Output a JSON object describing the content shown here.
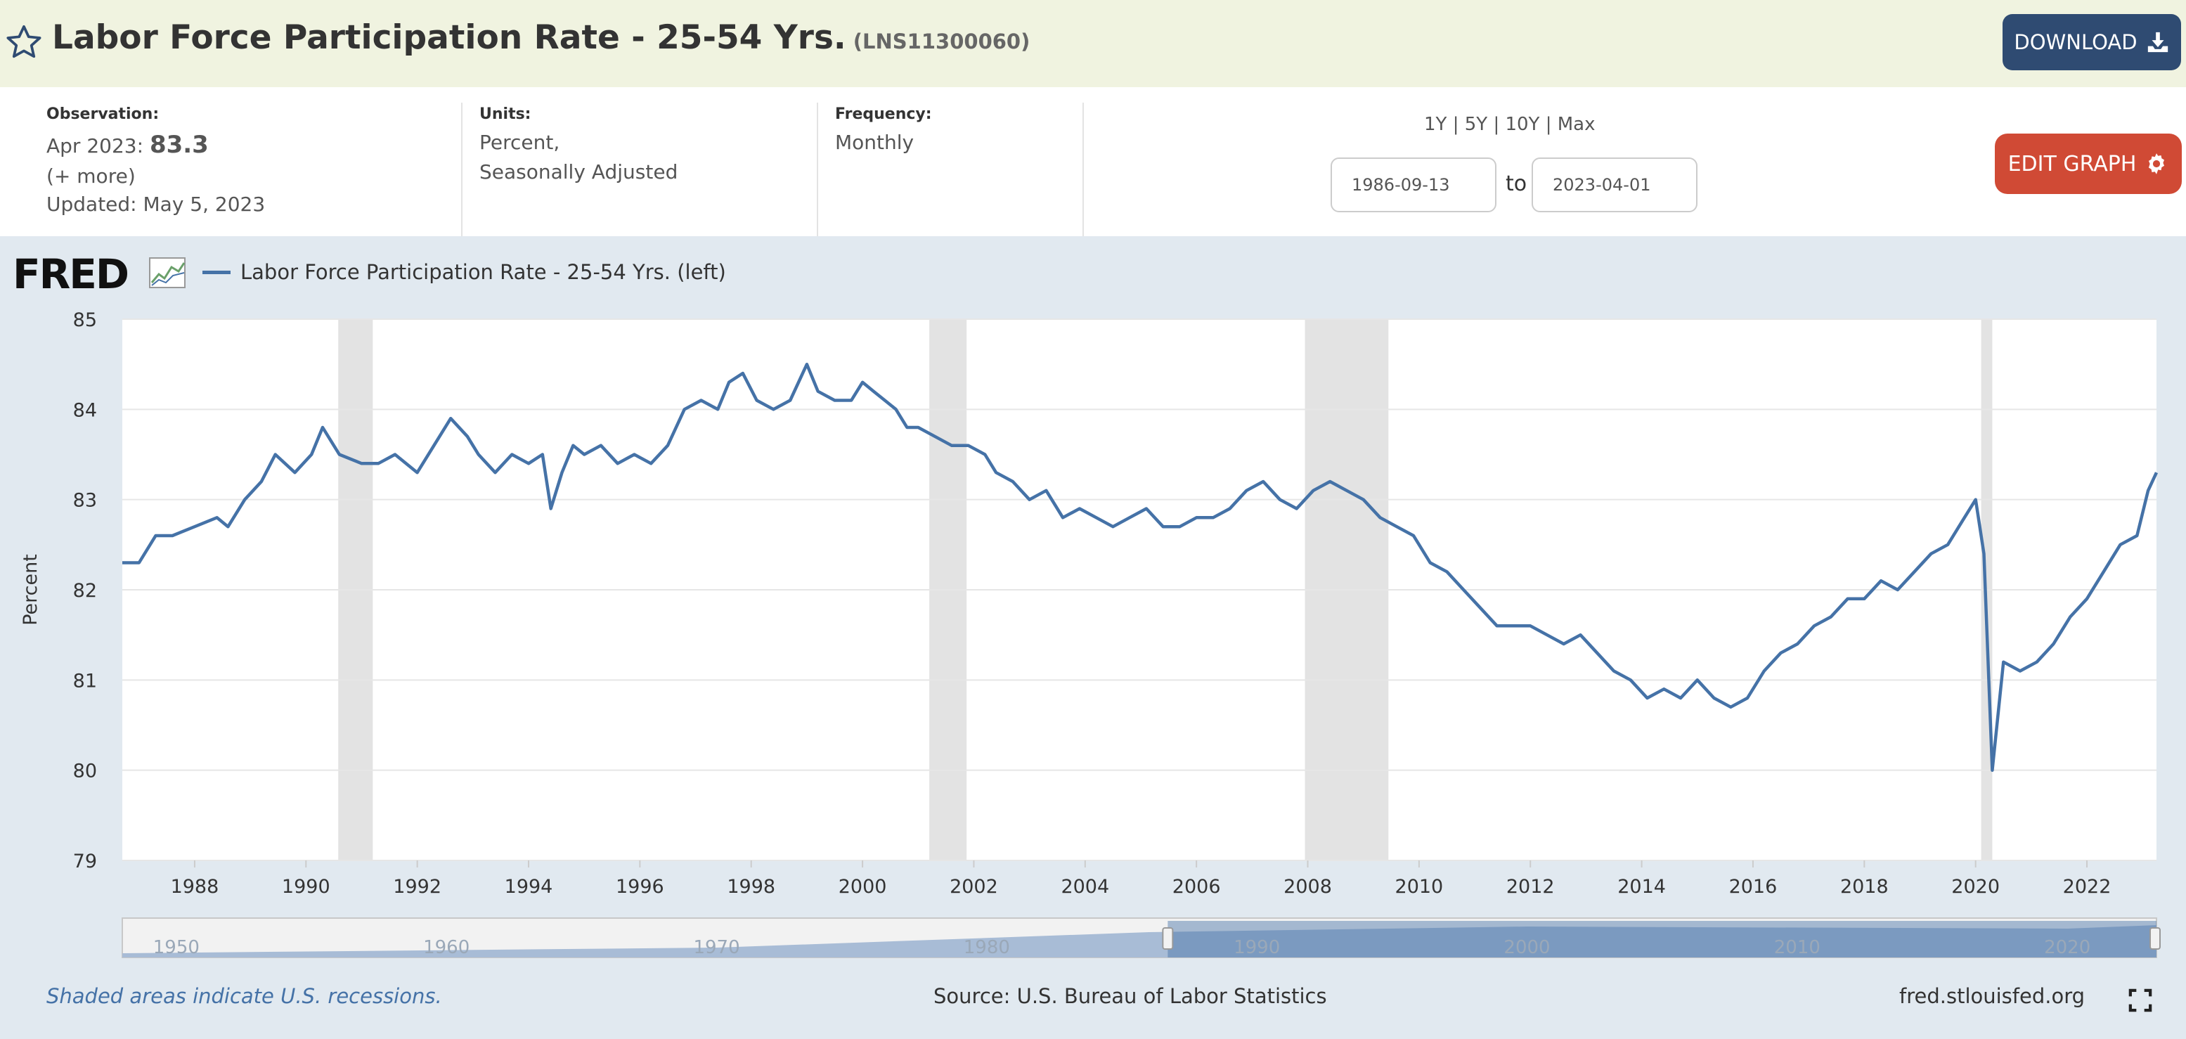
{
  "header": {
    "title": "Labor Force Participation Rate - 25-54 Yrs.",
    "series_id": "(LNS11300060)",
    "download_label": "DOWNLOAD",
    "star_icon": "star-icon",
    "download_icon": "download-icon"
  },
  "meta": {
    "observation_label": "Observation:",
    "observation_date": "Apr 2023:",
    "observation_value": "83.3",
    "more": "(+ more)",
    "updated": "Updated: May 5, 2023",
    "units_label": "Units:",
    "units_line1": "Percent,",
    "units_line2": "Seasonally Adjusted",
    "frequency_label": "Frequency:",
    "frequency": "Monthly",
    "range_options": [
      "1Y",
      "5Y",
      "10Y",
      "Max"
    ],
    "range_sep": "|",
    "start_date": "1986-09-13",
    "to": "to",
    "end_date": "2023-04-01",
    "edit_label": "EDIT GRAPH",
    "gear_icon": "gear-icon"
  },
  "chart_data": {
    "type": "line",
    "logo": "FRED",
    "legend": "Labor Force Participation Rate - 25-54 Yrs. (left)",
    "ylabel": "Percent",
    "ylim": [
      79,
      85
    ],
    "xlim": [
      1986.7,
      2023.25
    ],
    "y_ticks": [
      "85",
      "84",
      "83",
      "82",
      "81",
      "80",
      "79"
    ],
    "x_ticks": [
      "1988",
      "1990",
      "1992",
      "1994",
      "1996",
      "1998",
      "2000",
      "2002",
      "2004",
      "2006",
      "2008",
      "2010",
      "2012",
      "2014",
      "2016",
      "2018",
      "2020",
      "2022"
    ],
    "grid": true,
    "line_color": "#4572a7",
    "recessions": [
      [
        1990.58,
        1991.2
      ],
      [
        2001.2,
        2001.87
      ],
      [
        2007.95,
        2009.45
      ],
      [
        2020.1,
        2020.3
      ]
    ],
    "series": [
      {
        "values": [
          [
            1986.7,
            82.3
          ],
          [
            1987.0,
            82.3
          ],
          [
            1987.3,
            82.6
          ],
          [
            1987.6,
            82.6
          ],
          [
            1988.0,
            82.7
          ],
          [
            1988.4,
            82.8
          ],
          [
            1988.6,
            82.7
          ],
          [
            1988.9,
            83.0
          ],
          [
            1989.2,
            83.2
          ],
          [
            1989.45,
            83.5
          ],
          [
            1989.8,
            83.3
          ],
          [
            1990.1,
            83.5
          ],
          [
            1990.3,
            83.8
          ],
          [
            1990.6,
            83.5
          ],
          [
            1991.0,
            83.4
          ],
          [
            1991.3,
            83.4
          ],
          [
            1991.6,
            83.5
          ],
          [
            1992.0,
            83.3
          ],
          [
            1992.3,
            83.6
          ],
          [
            1992.6,
            83.9
          ],
          [
            1992.9,
            83.7
          ],
          [
            1993.1,
            83.5
          ],
          [
            1993.4,
            83.3
          ],
          [
            1993.7,
            83.5
          ],
          [
            1994.0,
            83.4
          ],
          [
            1994.25,
            83.5
          ],
          [
            1994.4,
            82.9
          ],
          [
            1994.6,
            83.3
          ],
          [
            1994.8,
            83.6
          ],
          [
            1995.0,
            83.5
          ],
          [
            1995.3,
            83.6
          ],
          [
            1995.6,
            83.4
          ],
          [
            1995.9,
            83.5
          ],
          [
            1996.2,
            83.4
          ],
          [
            1996.5,
            83.6
          ],
          [
            1996.8,
            84.0
          ],
          [
            1997.1,
            84.1
          ],
          [
            1997.4,
            84.0
          ],
          [
            1997.6,
            84.3
          ],
          [
            1997.85,
            84.4
          ],
          [
            1998.1,
            84.1
          ],
          [
            1998.4,
            84.0
          ],
          [
            1998.7,
            84.1
          ],
          [
            1999.0,
            84.5
          ],
          [
            1999.2,
            84.2
          ],
          [
            1999.5,
            84.1
          ],
          [
            1999.8,
            84.1
          ],
          [
            2000.0,
            84.3
          ],
          [
            2000.2,
            84.2
          ],
          [
            2000.4,
            84.1
          ],
          [
            2000.6,
            84.0
          ],
          [
            2000.8,
            83.8
          ],
          [
            2001.0,
            83.8
          ],
          [
            2001.3,
            83.7
          ],
          [
            2001.6,
            83.6
          ],
          [
            2001.9,
            83.6
          ],
          [
            2002.2,
            83.5
          ],
          [
            2002.4,
            83.3
          ],
          [
            2002.7,
            83.2
          ],
          [
            2003.0,
            83.0
          ],
          [
            2003.3,
            83.1
          ],
          [
            2003.6,
            82.8
          ],
          [
            2003.9,
            82.9
          ],
          [
            2004.2,
            82.8
          ],
          [
            2004.5,
            82.7
          ],
          [
            2004.8,
            82.8
          ],
          [
            2005.1,
            82.9
          ],
          [
            2005.4,
            82.7
          ],
          [
            2005.7,
            82.7
          ],
          [
            2006.0,
            82.8
          ],
          [
            2006.3,
            82.8
          ],
          [
            2006.6,
            82.9
          ],
          [
            2006.9,
            83.1
          ],
          [
            2007.2,
            83.2
          ],
          [
            2007.5,
            83.0
          ],
          [
            2007.8,
            82.9
          ],
          [
            2008.1,
            83.1
          ],
          [
            2008.4,
            83.2
          ],
          [
            2008.7,
            83.1
          ],
          [
            2009.0,
            83.0
          ],
          [
            2009.3,
            82.8
          ],
          [
            2009.6,
            82.7
          ],
          [
            2009.9,
            82.6
          ],
          [
            2010.2,
            82.3
          ],
          [
            2010.5,
            82.2
          ],
          [
            2010.8,
            82.0
          ],
          [
            2011.1,
            81.8
          ],
          [
            2011.4,
            81.6
          ],
          [
            2011.7,
            81.6
          ],
          [
            2012.0,
            81.6
          ],
          [
            2012.3,
            81.5
          ],
          [
            2012.6,
            81.4
          ],
          [
            2012.9,
            81.5
          ],
          [
            2013.2,
            81.3
          ],
          [
            2013.5,
            81.1
          ],
          [
            2013.8,
            81.0
          ],
          [
            2014.1,
            80.8
          ],
          [
            2014.4,
            80.9
          ],
          [
            2014.7,
            80.8
          ],
          [
            2015.0,
            81.0
          ],
          [
            2015.3,
            80.8
          ],
          [
            2015.6,
            80.7
          ],
          [
            2015.9,
            80.8
          ],
          [
            2016.2,
            81.1
          ],
          [
            2016.5,
            81.3
          ],
          [
            2016.8,
            81.4
          ],
          [
            2017.1,
            81.6
          ],
          [
            2017.4,
            81.7
          ],
          [
            2017.7,
            81.9
          ],
          [
            2018.0,
            81.9
          ],
          [
            2018.3,
            82.1
          ],
          [
            2018.6,
            82.0
          ],
          [
            2018.9,
            82.2
          ],
          [
            2019.2,
            82.4
          ],
          [
            2019.5,
            82.5
          ],
          [
            2019.8,
            82.8
          ],
          [
            2020.0,
            83.0
          ],
          [
            2020.15,
            82.4
          ],
          [
            2020.3,
            80.0
          ],
          [
            2020.5,
            81.2
          ],
          [
            2020.8,
            81.1
          ],
          [
            2021.1,
            81.2
          ],
          [
            2021.4,
            81.4
          ],
          [
            2021.7,
            81.7
          ],
          [
            2022.0,
            81.9
          ],
          [
            2022.3,
            82.2
          ],
          [
            2022.6,
            82.5
          ],
          [
            2022.9,
            82.6
          ],
          [
            2023.1,
            83.1
          ],
          [
            2023.25,
            83.3
          ]
        ]
      }
    ],
    "recession_note": "Shaded areas indicate U.S. recessions.",
    "source": "Source: U.S. Bureau of Labor Statistics",
    "site": "fred.stlouisfed.org",
    "navigator_ticks": [
      "1950",
      "1960",
      "1970",
      "1980",
      "1990",
      "2000",
      "2010",
      "2020"
    ]
  }
}
